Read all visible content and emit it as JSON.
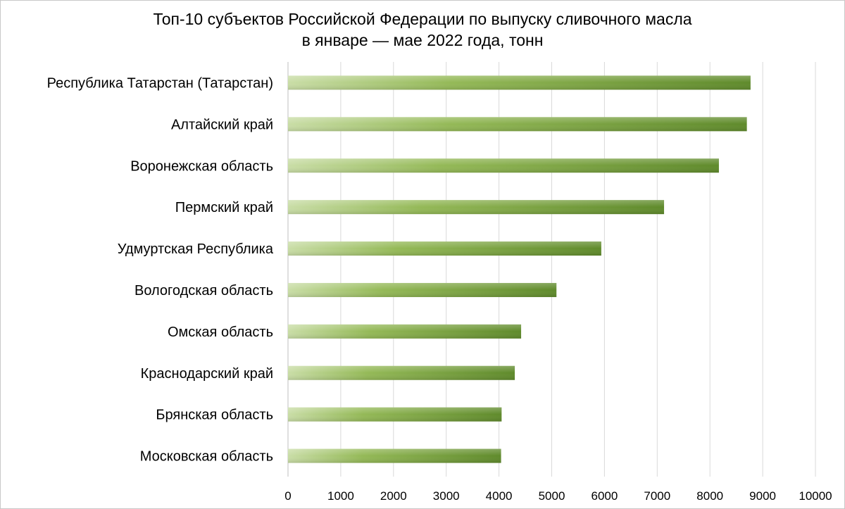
{
  "chart_data": {
    "type": "bar",
    "orientation": "horizontal",
    "title": "Топ-10 субъектов Российской Федерации по выпуску сливочного масла",
    "subtitle": "в январе — мае 2022 года, тонн",
    "categories": [
      "Республика Татарстан (Татарстан)",
      "Алтайский край",
      "Воронежская область",
      "Пермский край",
      "Удмуртская Республика",
      "Вологодская  область",
      "Омская область",
      "Краснодарский край",
      "Брянская область",
      "Московская область"
    ],
    "values": [
      8770,
      8700,
      8170,
      7130,
      5940,
      5090,
      4420,
      4300,
      4050,
      4040
    ],
    "xlim": [
      0,
      10000
    ],
    "xticks": [
      "0",
      "1000",
      "2000",
      "3000",
      "4000",
      "5000",
      "6000",
      "7000",
      "8000",
      "9000",
      "10000"
    ],
    "grid": "vertical",
    "legend": "none",
    "colors": {
      "bar_light": "#c9dda6",
      "bar_mid": "#94b957",
      "bar_dark": "#5f8a2b",
      "grid": "#d9d9d9",
      "axis": "#bfbfbf"
    }
  }
}
